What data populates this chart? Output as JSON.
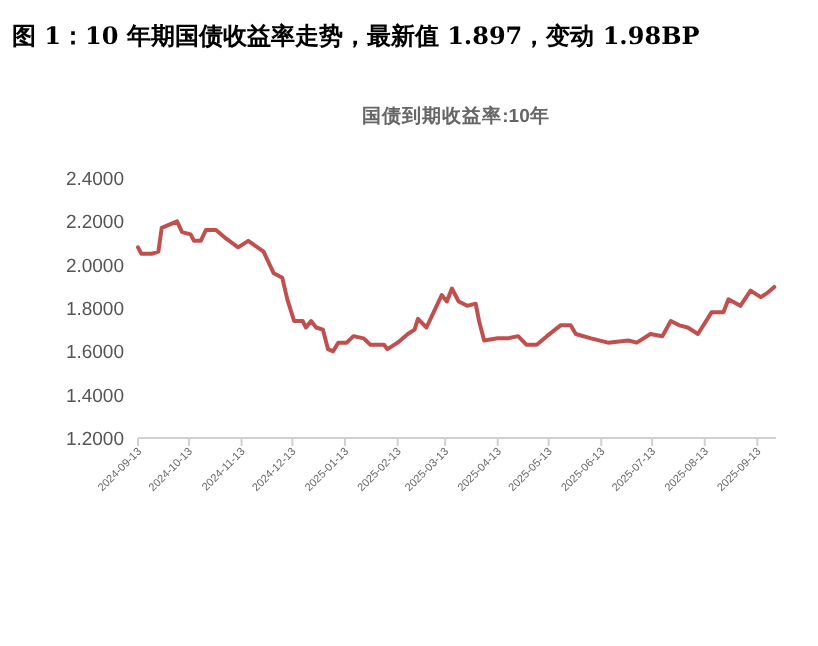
{
  "chart_data": {
    "type": "line",
    "title": "图 1：10 年期国债收益率走势，最新值 1.897，变动 1.98BP",
    "subtitle": "国债到期收益率:10年",
    "x": [
      "2024-09-13",
      "2024-09-15",
      "2024-09-21",
      "2024-09-25",
      "2024-09-27",
      "2024-10-06",
      "2024-10-09",
      "2024-10-14",
      "2024-10-16",
      "2024-10-20",
      "2024-10-23",
      "2024-10-29",
      "2024-11-04",
      "2024-11-11",
      "2024-11-17",
      "2024-11-26",
      "2024-12-02",
      "2024-12-07",
      "2024-12-10",
      "2024-12-14",
      "2024-12-19",
      "2024-12-21",
      "2024-12-24",
      "2024-12-27",
      "2024-12-31",
      "2025-01-03",
      "2025-01-06",
      "2025-01-09",
      "2025-01-14",
      "2025-01-18",
      "2025-01-24",
      "2025-01-28",
      "2025-02-05",
      "2025-02-07",
      "2025-02-13",
      "2025-02-19",
      "2025-02-23",
      "2025-02-25",
      "2025-03-02",
      "2025-03-08",
      "2025-03-11",
      "2025-03-14",
      "2025-03-17",
      "2025-03-21",
      "2025-03-26",
      "2025-03-31",
      "2025-04-02",
      "2025-04-05",
      "2025-04-13",
      "2025-04-19",
      "2025-04-25",
      "2025-04-30",
      "2025-05-06",
      "2025-05-12",
      "2025-05-20",
      "2025-05-26",
      "2025-05-29",
      "2025-06-07",
      "2025-06-17",
      "2025-06-29",
      "2025-07-04",
      "2025-07-12",
      "2025-07-19",
      "2025-07-24",
      "2025-07-29",
      "2025-08-03",
      "2025-08-09",
      "2025-08-17",
      "2025-08-24",
      "2025-08-27",
      "2025-09-03",
      "2025-09-09",
      "2025-09-15",
      "2025-09-19",
      "2025-09-23"
    ],
    "series": [
      {
        "color": "#c0504d",
        "values": [
          2.08,
          2.05,
          2.05,
          2.06,
          2.17,
          2.2,
          2.15,
          2.14,
          2.11,
          2.11,
          2.16,
          2.16,
          2.12,
          2.08,
          2.11,
          2.06,
          1.96,
          1.94,
          1.84,
          1.74,
          1.74,
          1.71,
          1.74,
          1.71,
          1.7,
          1.61,
          1.6,
          1.64,
          1.64,
          1.67,
          1.66,
          1.63,
          1.63,
          1.61,
          1.64,
          1.68,
          1.7,
          1.75,
          1.71,
          1.81,
          1.86,
          1.83,
          1.89,
          1.83,
          1.81,
          1.82,
          1.74,
          1.65,
          1.66,
          1.66,
          1.67,
          1.63,
          1.63,
          1.67,
          1.72,
          1.72,
          1.68,
          1.66,
          1.64,
          1.65,
          1.64,
          1.68,
          1.67,
          1.74,
          1.72,
          1.71,
          1.68,
          1.78,
          1.78,
          1.84,
          1.81,
          1.88,
          1.85,
          1.87,
          1.897
        ]
      }
    ],
    "xlim": [
      "2024-09-13",
      "2025-09-24"
    ],
    "xticks": [
      "2024-09-13",
      "2024-10-13",
      "2024-11-13",
      "2024-12-13",
      "2025-01-13",
      "2025-02-13",
      "2025-03-13",
      "2025-04-13",
      "2025-05-13",
      "2025-06-13",
      "2025-07-13",
      "2025-08-13",
      "2025-09-13"
    ],
    "ylim": [
      1.2,
      2.4
    ],
    "yticks": [
      {
        "value": 1.2,
        "label": "1.2000"
      },
      {
        "value": 1.4,
        "label": "1.4000"
      },
      {
        "value": 1.6,
        "label": "1.6000"
      },
      {
        "value": 1.8,
        "label": "1.8000"
      },
      {
        "value": 2.0,
        "label": "2.0000"
      },
      {
        "value": 2.2,
        "label": "2.2000"
      },
      {
        "value": 2.4,
        "label": "2.4000"
      }
    ],
    "grid": false
  }
}
